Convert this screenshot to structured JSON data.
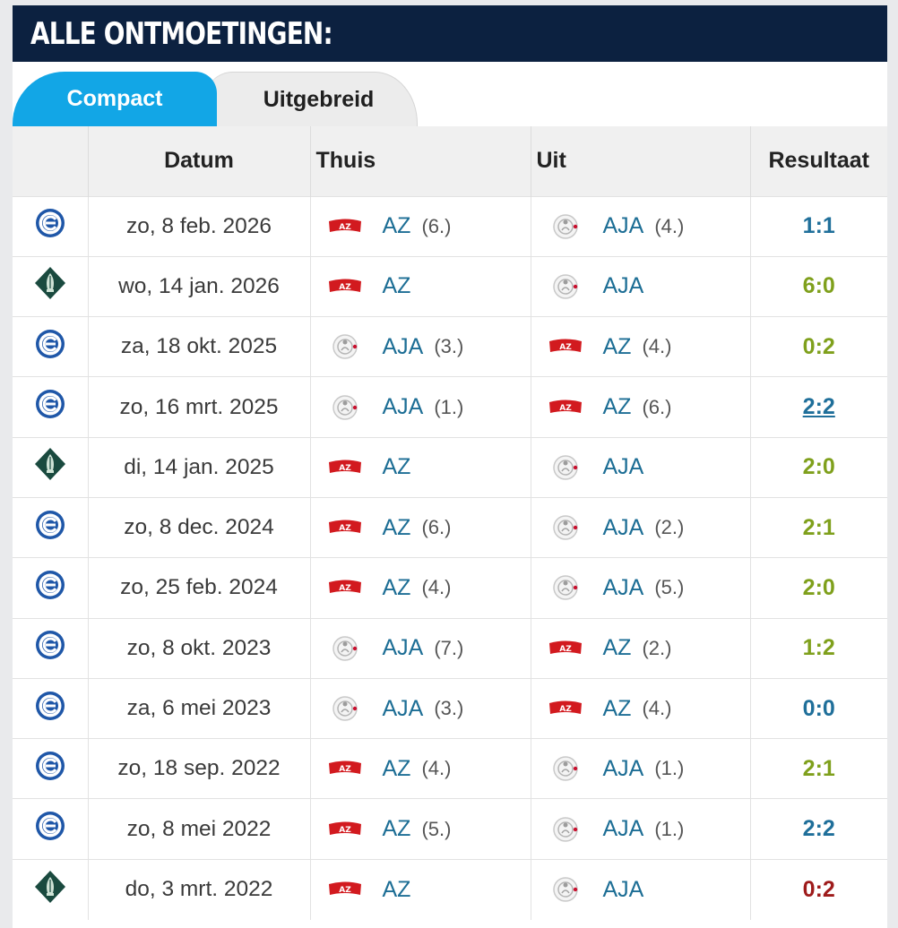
{
  "header": {
    "title": "ALLE ONTMOETINGEN:"
  },
  "tabs": [
    {
      "label": "Compact",
      "active": true
    },
    {
      "label": "Uitgebreid",
      "active": false
    }
  ],
  "columns": [
    "",
    "Datum",
    "Thuis",
    "Uit",
    "Resultaat"
  ],
  "colors": {
    "header_bg": "#0c2140",
    "tab_active": "#12a6e6",
    "team_link": "#1d6e95",
    "draw": "#1f6f9a",
    "win": "#7fa01c",
    "loss": "#9e1b1b"
  },
  "matches": [
    {
      "competition_icon": "eredivisie-icon",
      "date": "zo, 8 feb. 2026",
      "home": {
        "name": "AZ",
        "pos": "(6.)",
        "logo": "az-logo-icon"
      },
      "away": {
        "name": "AJA",
        "pos": "(4.)",
        "logo": "ajax-logo-icon"
      },
      "result": "1:1",
      "result_type": "draw"
    },
    {
      "competition_icon": "knvb-cup-icon",
      "date": "wo, 14 jan. 2026",
      "home": {
        "name": "AZ",
        "pos": "",
        "logo": "az-logo-icon"
      },
      "away": {
        "name": "AJA",
        "pos": "",
        "logo": "ajax-logo-icon"
      },
      "result": "6:0",
      "result_type": "win"
    },
    {
      "competition_icon": "eredivisie-icon",
      "date": "za, 18 okt. 2025",
      "home": {
        "name": "AJA",
        "pos": "(3.)",
        "logo": "ajax-logo-icon"
      },
      "away": {
        "name": "AZ",
        "pos": "(4.)",
        "logo": "az-logo-icon"
      },
      "result": "0:2",
      "result_type": "win"
    },
    {
      "competition_icon": "eredivisie-icon",
      "date": "zo, 16 mrt. 2025",
      "home": {
        "name": "AJA",
        "pos": "(1.)",
        "logo": "ajax-logo-icon"
      },
      "away": {
        "name": "AZ",
        "pos": "(6.)",
        "logo": "az-logo-icon"
      },
      "result": "2:2",
      "result_type": "draw",
      "link": true
    },
    {
      "competition_icon": "knvb-cup-icon",
      "date": "di, 14 jan. 2025",
      "home": {
        "name": "AZ",
        "pos": "",
        "logo": "az-logo-icon"
      },
      "away": {
        "name": "AJA",
        "pos": "",
        "logo": "ajax-logo-icon"
      },
      "result": "2:0",
      "result_type": "win"
    },
    {
      "competition_icon": "eredivisie-icon",
      "date": "zo, 8 dec. 2024",
      "home": {
        "name": "AZ",
        "pos": "(6.)",
        "logo": "az-logo-icon"
      },
      "away": {
        "name": "AJA",
        "pos": "(2.)",
        "logo": "ajax-logo-icon"
      },
      "result": "2:1",
      "result_type": "win"
    },
    {
      "competition_icon": "eredivisie-icon",
      "date": "zo, 25 feb. 2024",
      "home": {
        "name": "AZ",
        "pos": "(4.)",
        "logo": "az-logo-icon"
      },
      "away": {
        "name": "AJA",
        "pos": "(5.)",
        "logo": "ajax-logo-icon"
      },
      "result": "2:0",
      "result_type": "win"
    },
    {
      "competition_icon": "eredivisie-icon",
      "date": "zo, 8 okt. 2023",
      "home": {
        "name": "AJA",
        "pos": "(7.)",
        "logo": "ajax-logo-icon"
      },
      "away": {
        "name": "AZ",
        "pos": "(2.)",
        "logo": "az-logo-icon"
      },
      "result": "1:2",
      "result_type": "win"
    },
    {
      "competition_icon": "eredivisie-icon",
      "date": "za, 6 mei 2023",
      "home": {
        "name": "AJA",
        "pos": "(3.)",
        "logo": "ajax-logo-icon"
      },
      "away": {
        "name": "AZ",
        "pos": "(4.)",
        "logo": "az-logo-icon"
      },
      "result": "0:0",
      "result_type": "draw"
    },
    {
      "competition_icon": "eredivisie-icon",
      "date": "zo, 18 sep. 2022",
      "home": {
        "name": "AZ",
        "pos": "(4.)",
        "logo": "az-logo-icon"
      },
      "away": {
        "name": "AJA",
        "pos": "(1.)",
        "logo": "ajax-logo-icon"
      },
      "result": "2:1",
      "result_type": "win"
    },
    {
      "competition_icon": "eredivisie-icon",
      "date": "zo, 8 mei 2022",
      "home": {
        "name": "AZ",
        "pos": "(5.)",
        "logo": "az-logo-icon"
      },
      "away": {
        "name": "AJA",
        "pos": "(1.)",
        "logo": "ajax-logo-icon"
      },
      "result": "2:2",
      "result_type": "draw"
    },
    {
      "competition_icon": "knvb-cup-icon",
      "date": "do, 3 mrt. 2022",
      "home": {
        "name": "AZ",
        "pos": "",
        "logo": "az-logo-icon"
      },
      "away": {
        "name": "AJA",
        "pos": "",
        "logo": "ajax-logo-icon"
      },
      "result": "0:2",
      "result_type": "loss"
    }
  ]
}
